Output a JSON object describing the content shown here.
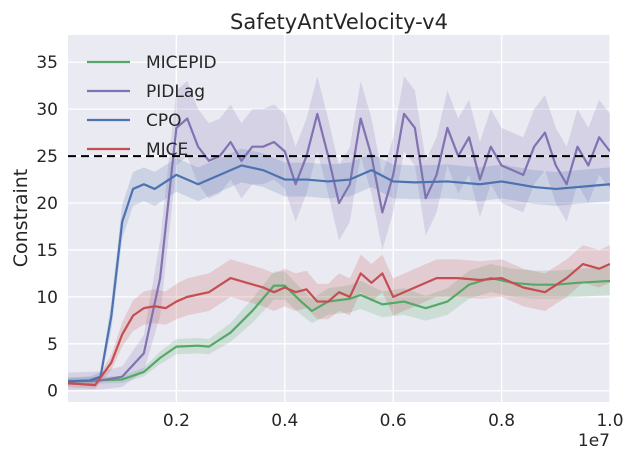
{
  "chart_data": {
    "type": "line",
    "title": "SafetyAntVelocity-v4",
    "xlabel": "",
    "ylabel": "Constraint",
    "x_offset_label": "1e7",
    "xlim": [
      0,
      1.0
    ],
    "ylim": [
      -1.2,
      37.9
    ],
    "xticks": [
      0.2,
      0.4,
      0.6,
      0.8,
      1.0
    ],
    "xtick_labels": [
      "0.2",
      "0.4",
      "0.6",
      "0.8",
      "1.0"
    ],
    "yticks": [
      0,
      5,
      10,
      15,
      20,
      25,
      30,
      35
    ],
    "ytick_labels": [
      "0",
      "5",
      "10",
      "15",
      "20",
      "25",
      "30",
      "35"
    ],
    "grid": true,
    "background": "#eaeaf2",
    "legend_position": "top-left",
    "threshold": {
      "value": 25,
      "style": "dashed",
      "color": "#000000"
    },
    "series": [
      {
        "name": "MICEPID",
        "color": "#55a868",
        "band_halfwidth": 1.5,
        "x": [
          0,
          0.1,
          0.14,
          0.17,
          0.2,
          0.24,
          0.26,
          0.3,
          0.34,
          0.38,
          0.4,
          0.43,
          0.45,
          0.48,
          0.52,
          0.54,
          0.58,
          0.62,
          0.66,
          0.7,
          0.74,
          0.78,
          0.82,
          0.86,
          0.9,
          0.94,
          1.0
        ],
        "y": [
          1,
          1.2,
          2,
          3.5,
          4.7,
          4.8,
          4.7,
          6.2,
          8.5,
          11.2,
          11.2,
          9.5,
          8.5,
          9.5,
          9.8,
          10.2,
          9.2,
          9.5,
          8.8,
          9.5,
          11.3,
          12,
          11.5,
          11.3,
          11.3,
          11.5,
          11.7
        ]
      },
      {
        "name": "PIDLag",
        "color": "#8172b2",
        "band_halfwidth": 4,
        "x": [
          0,
          0.06,
          0.1,
          0.14,
          0.17,
          0.2,
          0.22,
          0.24,
          0.26,
          0.28,
          0.3,
          0.32,
          0.34,
          0.36,
          0.38,
          0.4,
          0.42,
          0.44,
          0.46,
          0.48,
          0.5,
          0.52,
          0.54,
          0.56,
          0.58,
          0.6,
          0.62,
          0.64,
          0.66,
          0.68,
          0.7,
          0.72,
          0.74,
          0.76,
          0.78,
          0.8,
          0.82,
          0.84,
          0.86,
          0.88,
          0.9,
          0.92,
          0.94,
          0.96,
          0.98,
          1.0
        ],
        "y": [
          1,
          1.1,
          1.5,
          4,
          12,
          28,
          29,
          26,
          24.5,
          25,
          26.5,
          24.5,
          26,
          26,
          26.5,
          25.5,
          22,
          25,
          29.5,
          25,
          20,
          22,
          29,
          25,
          19,
          23,
          29.5,
          28,
          20.5,
          23,
          28,
          25,
          27,
          22.5,
          26,
          24,
          23.5,
          23,
          26,
          27.5,
          24,
          22,
          26,
          24,
          27,
          25.5
        ]
      },
      {
        "name": "CPO",
        "color": "#4c72b0",
        "band_halfwidth": 1.8,
        "x": [
          0,
          0.04,
          0.06,
          0.08,
          0.1,
          0.12,
          0.14,
          0.16,
          0.2,
          0.24,
          0.28,
          0.32,
          0.36,
          0.4,
          0.44,
          0.48,
          0.52,
          0.56,
          0.6,
          0.64,
          0.7,
          0.76,
          0.8,
          0.86,
          0.9,
          0.96,
          1.0
        ],
        "y": [
          1,
          1.1,
          1.5,
          8,
          18,
          21.5,
          22,
          21.5,
          23,
          22,
          23,
          24,
          23.5,
          22.5,
          22.5,
          22.3,
          22.5,
          23.5,
          22.3,
          22.2,
          22.3,
          22,
          22.3,
          21.7,
          21.5,
          21.8,
          22
        ]
      },
      {
        "name": "MICE",
        "color": "#c44e52",
        "band_halfwidth": 2,
        "x": [
          0,
          0.05,
          0.08,
          0.1,
          0.12,
          0.14,
          0.16,
          0.18,
          0.2,
          0.22,
          0.26,
          0.3,
          0.33,
          0.36,
          0.38,
          0.4,
          0.42,
          0.44,
          0.46,
          0.48,
          0.5,
          0.52,
          0.54,
          0.56,
          0.58,
          0.6,
          0.64,
          0.68,
          0.72,
          0.76,
          0.8,
          0.84,
          0.88,
          0.92,
          0.95,
          0.98,
          1.0
        ],
        "y": [
          0.8,
          0.6,
          3,
          6,
          8,
          8.8,
          9,
          8.8,
          9.5,
          10,
          10.5,
          12,
          11.5,
          11,
          10.5,
          11,
          10.5,
          10.8,
          9.5,
          9.5,
          10.5,
          10,
          12.5,
          11.5,
          12.5,
          10,
          11,
          12,
          12,
          11.8,
          12,
          11,
          10.5,
          12,
          13.5,
          13,
          13.5
        ]
      }
    ]
  }
}
